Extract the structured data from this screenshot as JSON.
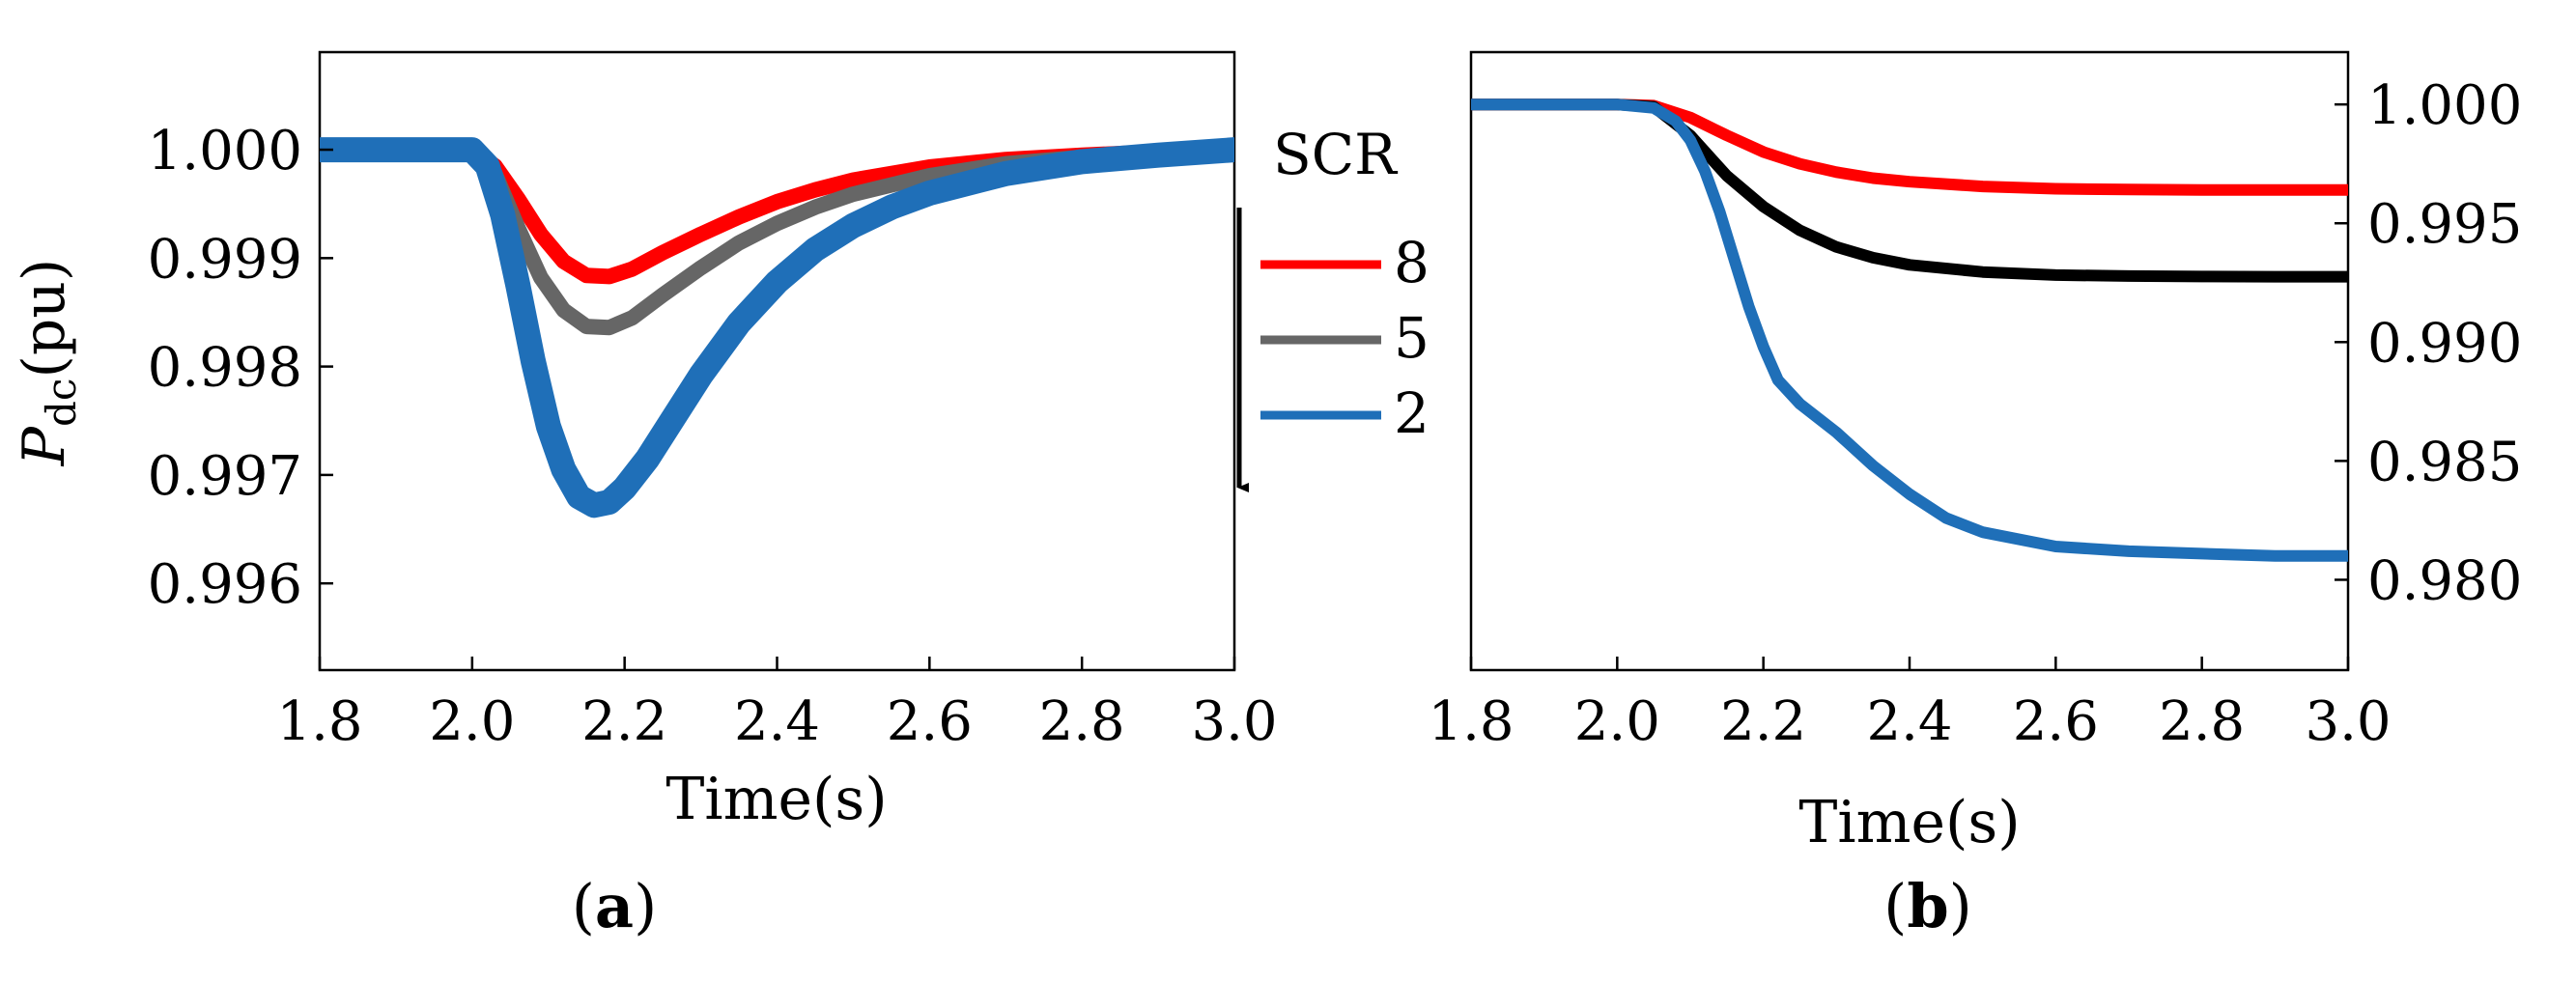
{
  "chart_data": [
    {
      "type": "line",
      "panel": "a",
      "caption": {
        "open": "(",
        "letter": "a",
        "close": ")"
      },
      "xlabel": "Time(s)",
      "ylabel": {
        "main": "P",
        "sub": "dc",
        "rest": "(pu)"
      },
      "xlim": [
        1.8,
        3.0
      ],
      "ylim": [
        0.9952,
        1.0009
      ],
      "xticks": [
        "1.8",
        "2.0",
        "2.2",
        "2.4",
        "2.6",
        "2.8",
        "3.0"
      ],
      "yticks": [
        "1.000",
        "0.999",
        "0.998",
        "0.997",
        "0.996"
      ],
      "y_axis_side": "left",
      "legend": {
        "title": "SCR",
        "placement": "right",
        "entries": [
          "8",
          "5",
          "2"
        ]
      },
      "series": [
        {
          "name": "8",
          "color": "#ff0000",
          "x": [
            1.8,
            2.0,
            2.03,
            2.06,
            2.09,
            2.12,
            2.15,
            2.18,
            2.21,
            2.25,
            2.3,
            2.35,
            2.4,
            2.45,
            2.5,
            2.6,
            2.7,
            2.8,
            2.9,
            3.0
          ],
          "y": [
            1.0,
            1.0,
            0.99985,
            0.99955,
            0.99922,
            0.99897,
            0.99884,
            0.99883,
            0.9989,
            0.99905,
            0.99922,
            0.99938,
            0.99952,
            0.99963,
            0.99972,
            0.99984,
            0.99991,
            0.99995,
            0.99998,
            1.0
          ]
        },
        {
          "name": "5",
          "color": "#666666",
          "x": [
            1.8,
            2.0,
            2.03,
            2.06,
            2.09,
            2.12,
            2.15,
            2.18,
            2.21,
            2.25,
            2.3,
            2.35,
            2.4,
            2.45,
            2.5,
            2.6,
            2.7,
            2.8,
            2.9,
            3.0
          ],
          "y": [
            1.0,
            1.0,
            0.99978,
            0.99928,
            0.99882,
            0.99852,
            0.99837,
            0.99836,
            0.99845,
            0.99866,
            0.99891,
            0.99914,
            0.99932,
            0.99947,
            0.99959,
            0.99976,
            0.99987,
            0.99993,
            0.99997,
            1.0
          ]
        },
        {
          "name": "2",
          "color": "#1f6fb8",
          "x": [
            1.8,
            2.0,
            2.02,
            2.04,
            2.06,
            2.08,
            2.1,
            2.12,
            2.14,
            2.16,
            2.18,
            2.2,
            2.23,
            2.26,
            2.3,
            2.35,
            2.4,
            2.45,
            2.5,
            2.55,
            2.6,
            2.7,
            2.8,
            2.9,
            3.0
          ],
          "y": [
            1.0,
            1.0,
            0.99985,
            0.9994,
            0.99875,
            0.99805,
            0.99745,
            0.99705,
            0.9968,
            0.99672,
            0.99675,
            0.99688,
            0.99715,
            0.99748,
            0.99792,
            0.9984,
            0.99878,
            0.99908,
            0.9993,
            0.99947,
            0.9996,
            0.99978,
            0.99989,
            0.99995,
            1.0
          ]
        }
      ]
    },
    {
      "type": "line",
      "panel": "b",
      "caption": {
        "open": "(",
        "letter": "b",
        "close": ")"
      },
      "xlabel": "Time(s)",
      "xlim": [
        1.8,
        3.0
      ],
      "ylim": [
        0.9762,
        1.0022
      ],
      "xticks": [
        "1.8",
        "2.0",
        "2.2",
        "2.4",
        "2.6",
        "2.8",
        "3.0"
      ],
      "yticks": [
        "1.000",
        "0.995",
        "0.990",
        "0.985",
        "0.980"
      ],
      "y_axis_side": "right",
      "series": [
        {
          "name": "8",
          "color": "#ff0000",
          "x": [
            1.8,
            2.0,
            2.05,
            2.1,
            2.15,
            2.2,
            2.25,
            2.3,
            2.35,
            2.4,
            2.5,
            2.6,
            2.7,
            2.8,
            2.9,
            3.0
          ],
          "y": [
            1.0,
            1.0,
            0.99995,
            0.99945,
            0.9987,
            0.998,
            0.9975,
            0.99715,
            0.9969,
            0.99675,
            0.99655,
            0.99645,
            0.99642,
            0.9964,
            0.9964,
            0.9964
          ]
        },
        {
          "name": "5",
          "color": "#000000",
          "x": [
            1.8,
            2.0,
            2.05,
            2.1,
            2.15,
            2.2,
            2.25,
            2.3,
            2.35,
            2.4,
            2.5,
            2.6,
            2.7,
            2.8,
            2.9,
            3.0
          ],
          "y": [
            1.0,
            1.0,
            0.9999,
            0.9987,
            0.997,
            0.9957,
            0.9947,
            0.994,
            0.99355,
            0.99325,
            0.99295,
            0.99282,
            0.99278,
            0.99276,
            0.99275,
            0.99275
          ]
        },
        {
          "name": "2",
          "color": "#1f6fb8",
          "x": [
            1.8,
            2.0,
            2.05,
            2.08,
            2.1,
            2.12,
            2.14,
            2.16,
            2.18,
            2.2,
            2.22,
            2.25,
            2.3,
            2.35,
            2.4,
            2.45,
            2.5,
            2.6,
            2.7,
            2.8,
            2.9,
            3.0
          ],
          "y": [
            1.0,
            1.0,
            0.99985,
            0.9993,
            0.9985,
            0.9972,
            0.9955,
            0.9935,
            0.9915,
            0.9898,
            0.9884,
            0.9874,
            0.9862,
            0.9848,
            0.9836,
            0.9826,
            0.982,
            0.9814,
            0.9812,
            0.9811,
            0.981,
            0.981
          ]
        }
      ]
    }
  ]
}
